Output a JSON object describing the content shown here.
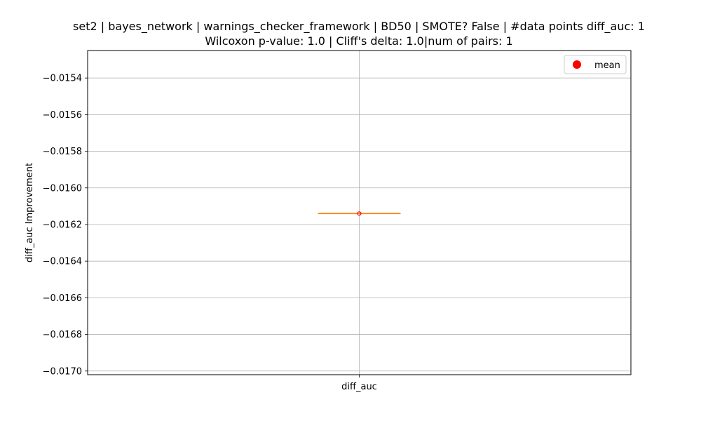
{
  "chart_data": {
    "type": "box",
    "title_line1": "set2 | bayes_network | warnings_checker_framework | BD50 | SMOTE? False | #data points diff_auc: 1",
    "title_line2": "Wilcoxon p-value: 1.0 | Cliff's delta: 1.0|num of pairs: 1",
    "ylabel": "diff_auc Improvement",
    "xlabel": "",
    "categories": [
      "diff_auc"
    ],
    "ylim": [
      -0.01702,
      -0.01525
    ],
    "yticks": [
      -0.0154,
      -0.0156,
      -0.0158,
      -0.016,
      -0.0162,
      -0.0164,
      -0.0166,
      -0.0168,
      -0.017
    ],
    "ytick_labels": [
      "−0.0154",
      "−0.0156",
      "−0.0158",
      "−0.0160",
      "−0.0162",
      "−0.0164",
      "−0.0166",
      "−0.0168",
      "−0.0170"
    ],
    "grid": true,
    "legend": {
      "placement": "top-right",
      "entries": [
        {
          "label": "mean",
          "color": "#ff0000",
          "marker": "circle"
        }
      ]
    },
    "boxes": [
      {
        "category": "diff_auc",
        "min": -0.01614,
        "q1": -0.01614,
        "median": -0.01614,
        "q3": -0.01614,
        "max": -0.01614,
        "mean": -0.01614
      }
    ],
    "colors": {
      "median": "#ff7f0e",
      "mean": "#ff0000",
      "grid": "#b0b0b0",
      "box": "#000000"
    }
  }
}
